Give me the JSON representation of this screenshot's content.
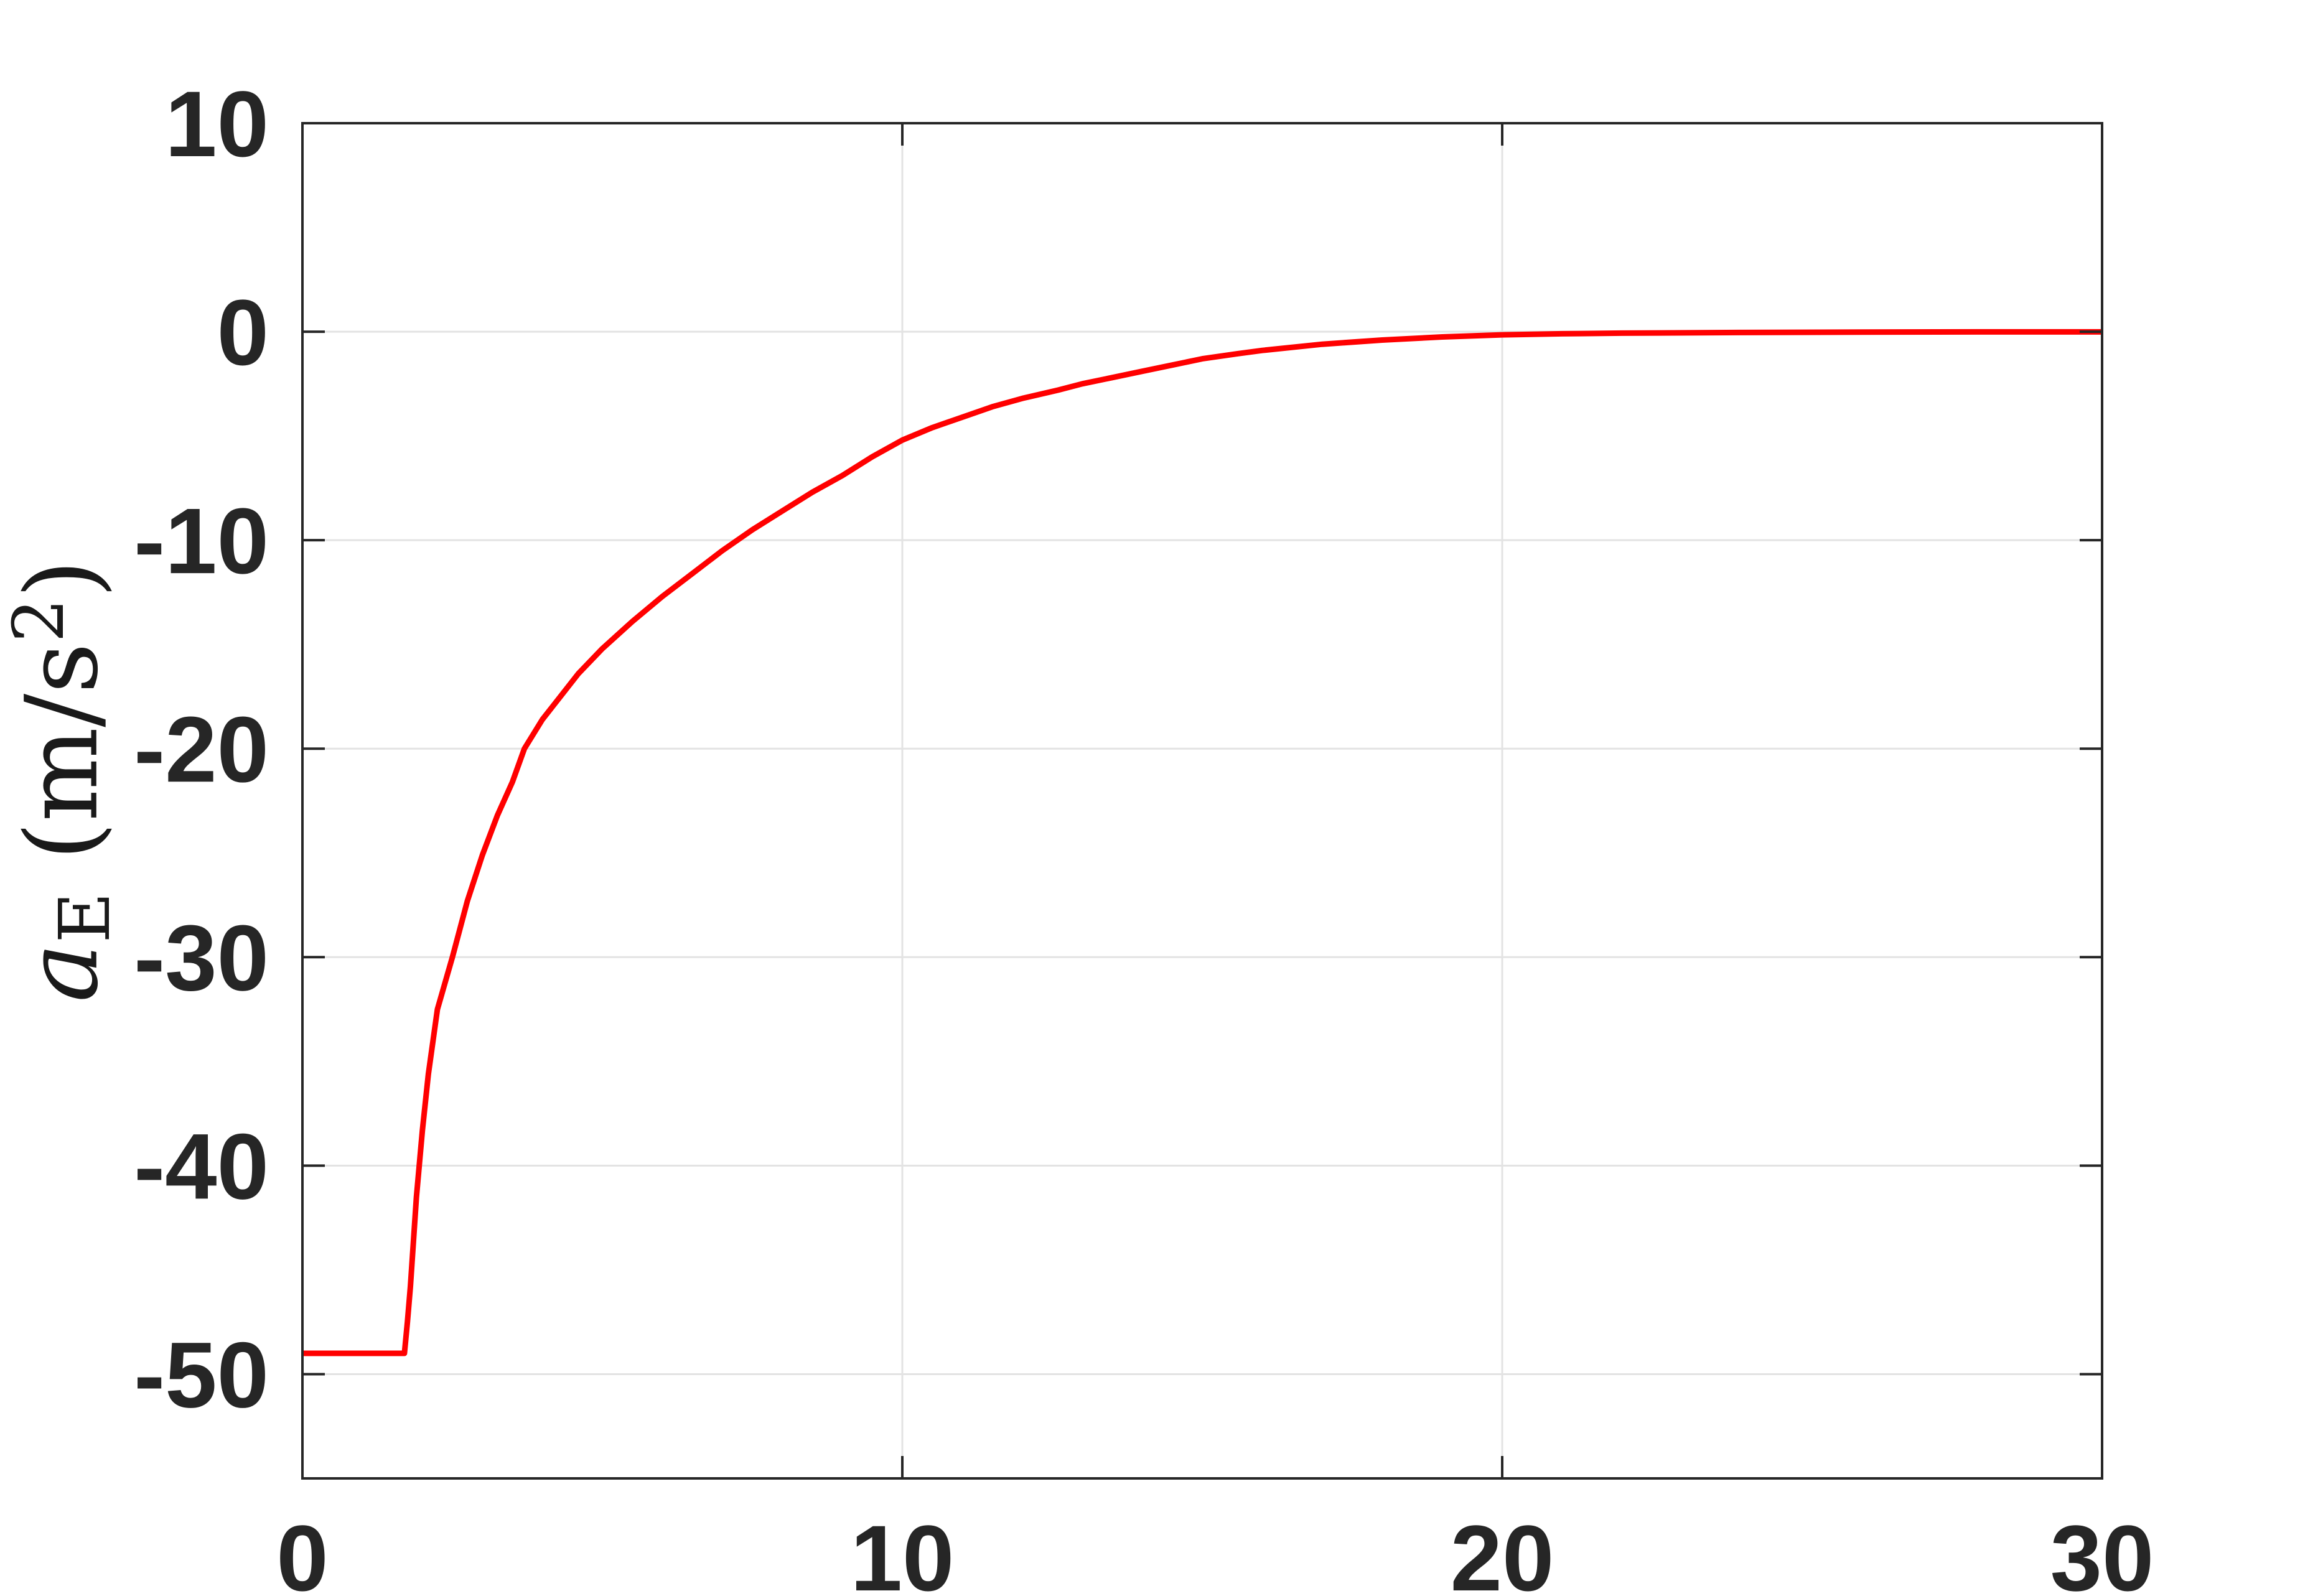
{
  "style": {
    "background": "#ffffff",
    "axis_color": "#262626",
    "grid_color": "#e3e3e3",
    "tick_label_color": "#262626",
    "line_color": "#ff0000"
  },
  "chart_data": {
    "type": "line",
    "title": "",
    "xlabel": "",
    "ylabel": "aE (m/s2)",
    "ylabel_parts": {
      "variable": "a",
      "subscript": "E",
      "unit_open": " (m/s",
      "unit_exponent": "2",
      "unit_close": ")"
    },
    "xlim": [
      0,
      30
    ],
    "ylim": [
      -55,
      10
    ],
    "xticks": {
      "values": [
        0,
        10,
        20,
        30
      ],
      "labels": [
        "0",
        "10",
        "20",
        "30"
      ]
    },
    "yticks": {
      "values": [
        10,
        0,
        -10,
        -20,
        -30,
        -40,
        -50
      ],
      "labels": [
        "10",
        "0",
        "-10",
        "-20",
        "-30",
        "-40",
        "-50"
      ]
    },
    "grid": true,
    "legend_position": "none",
    "series": [
      {
        "name": "a_E",
        "color": "#ff0000",
        "line_width": 9,
        "x": [
          0,
          1.7,
          1.75,
          1.8,
          1.9,
          2.0,
          2.1,
          2.25,
          2.5,
          2.75,
          3.0,
          3.25,
          3.5,
          3.7,
          4.0,
          4.3,
          4.6,
          5.0,
          5.5,
          6.0,
          6.5,
          7.0,
          7.5,
          8.0,
          8.5,
          9.0,
          9.5,
          10.0,
          10.5,
          11.0,
          11.5,
          12.0,
          12.6,
          13.0,
          13.5,
          14.0,
          14.5,
          15.0,
          15.6,
          16.0,
          17.0,
          18.0,
          19.0,
          20.0,
          21.0,
          22.0,
          24.0,
          26.0,
          28.0,
          30.0
        ],
        "y": [
          -49,
          -49,
          -47.5,
          -45.8,
          -41.5,
          -38.3,
          -35.6,
          -32.5,
          -30.0,
          -27.3,
          -25.1,
          -23.2,
          -21.6,
          -20.0,
          -18.6,
          -17.5,
          -16.4,
          -15.2,
          -13.9,
          -12.7,
          -11.6,
          -10.5,
          -9.5,
          -8.6,
          -7.7,
          -6.9,
          -6.0,
          -5.2,
          -4.6,
          -4.1,
          -3.6,
          -3.2,
          -2.8,
          -2.5,
          -2.2,
          -1.9,
          -1.6,
          -1.3,
          -1.05,
          -0.9,
          -0.6,
          -0.4,
          -0.25,
          -0.15,
          -0.1,
          -0.07,
          -0.04,
          -0.02,
          -0.01,
          -0.01
        ]
      }
    ]
  }
}
